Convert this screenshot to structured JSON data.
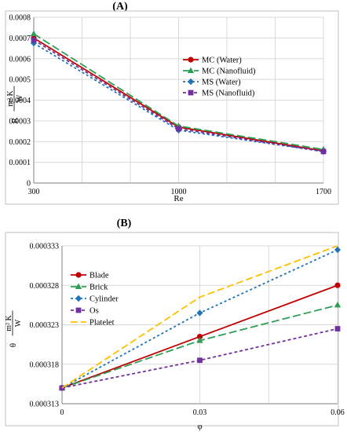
{
  "panels": {
    "a_label": "(A)",
    "b_label": "(B)"
  },
  "chart_data": [
    {
      "type": "line",
      "title": "",
      "xlabel": "Re",
      "ylabel": "R (m² K / W)",
      "ylabel_lead": "R",
      "ylabel_num": "m² K",
      "ylabel_den": "W",
      "categories": [
        "300",
        "1000",
        "1700"
      ],
      "x": [
        300,
        1000,
        1700
      ],
      "ylim": [
        0,
        0.0008
      ],
      "yticks": [
        "0",
        "0.0001",
        "0.0002",
        "0.0003",
        "0.0004",
        "0.0005",
        "0.0006",
        "0.0007",
        "0.0008"
      ],
      "grid": true,
      "legend_position": "right",
      "series": [
        {
          "name": "MC (Water)",
          "values": [
            0.0007,
            0.00027,
            0.000155
          ],
          "color": "#c00000",
          "marker": "circle",
          "dash": "none"
        },
        {
          "name": "MC (Nanofluid)",
          "values": [
            0.00072,
            0.000275,
            0.000162
          ],
          "color": "#2e9e55",
          "marker": "triangle",
          "dash": "10,4"
        },
        {
          "name": "MS (Water)",
          "values": [
            0.000675,
            0.000255,
            0.000152
          ],
          "color": "#1f73b7",
          "marker": "diamond",
          "dash": "3,3"
        },
        {
          "name": "MS (Nanofluid)",
          "values": [
            0.00069,
            0.000262,
            0.000152
          ],
          "color": "#7030a0",
          "marker": "square",
          "dash": "4,3"
        }
      ]
    },
    {
      "type": "line",
      "title": "",
      "xlabel": "φ",
      "ylabel": "θ (m² K / W)",
      "ylabel_lead": "θ",
      "ylabel_num": "m² K",
      "ylabel_den": "W",
      "categories": [
        "0",
        "0.03",
        "0.06"
      ],
      "x": [
        0,
        0.03,
        0.06
      ],
      "ylim": [
        0.000313,
        0.000333
      ],
      "yticks": [
        "0.000313",
        "0.000318",
        "0.000323",
        "0.000328",
        "0.000333"
      ],
      "grid": true,
      "legend_position": "top-left",
      "series": [
        {
          "name": "Blade",
          "values": [
            0.000315,
            0.0003215,
            0.000328
          ],
          "color": "#c00000",
          "marker": "circle",
          "dash": "none"
        },
        {
          "name": "Brick",
          "values": [
            0.000315,
            0.000321,
            0.0003255
          ],
          "color": "#2e9e55",
          "marker": "triangle",
          "dash": "10,4"
        },
        {
          "name": "Cylinder",
          "values": [
            0.000315,
            0.0003245,
            0.0003325
          ],
          "color": "#1f73b7",
          "marker": "diamond",
          "dash": "3,3"
        },
        {
          "name": "Os",
          "values": [
            0.000315,
            0.0003185,
            0.0003225
          ],
          "color": "#7030a0",
          "marker": "square",
          "dash": "4,3"
        },
        {
          "name": "Platelet",
          "values": [
            0.000315,
            0.0003265,
            0.000333
          ],
          "color": "#ffc000",
          "marker": "none",
          "dash": "9,4"
        }
      ]
    }
  ]
}
